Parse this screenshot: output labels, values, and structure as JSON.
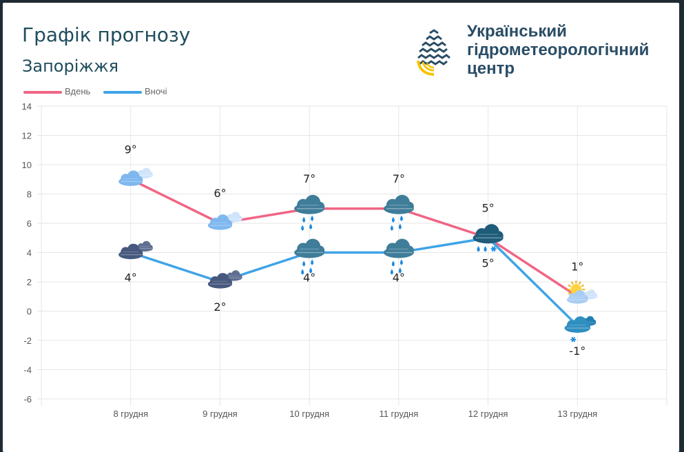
{
  "header": {
    "title": "Графік прогнозу",
    "subtitle": "Запоріжжя"
  },
  "logo": {
    "line1": "Український",
    "line2": "гідрометеорологічний",
    "line3": "центр",
    "icon": "drop-logo-icon"
  },
  "colors": {
    "day": "#f06584",
    "night": "#3fa4e6",
    "grid": "#e6e6e6",
    "axis_text": "#555555"
  },
  "chart_data": {
    "type": "line",
    "categories": [
      "8 грудня",
      "9 грудня",
      "10 грудня",
      "11 грудня",
      "12 грудня",
      "13 грудня"
    ],
    "series": [
      {
        "name": "Вдень",
        "values": [
          9,
          6,
          7,
          7,
          5,
          1
        ],
        "labels": [
          "9°",
          "6°",
          "7°",
          "7°",
          "5°",
          "1°"
        ],
        "icons": [
          "light-cloudy",
          "light-cloudy",
          "cloud-rain",
          "cloud-rain",
          "cloud-sleet",
          "sun-cloud"
        ]
      },
      {
        "name": "Вночі",
        "values": [
          4,
          2,
          4,
          4,
          5,
          -1
        ],
        "labels": [
          "4°",
          "2°",
          "4°",
          "4°",
          "5°",
          "-1°"
        ],
        "icons": [
          "dark-cloudy",
          "dark-cloudy",
          "cloud-rain",
          "cloud-rain",
          "cloud-sleet",
          "cloud-snow"
        ]
      }
    ],
    "ylim": [
      -6,
      14
    ],
    "yticks": [
      "14",
      "12",
      "10",
      "8",
      "6",
      "4",
      "2",
      "0",
      "-2",
      "-4",
      "-6"
    ],
    "ytick_values": [
      14,
      12,
      10,
      8,
      6,
      4,
      2,
      0,
      -2,
      -4,
      -6
    ],
    "grid": true,
    "legend": "top-left",
    "title": "",
    "xlabel": "",
    "ylabel": ""
  }
}
